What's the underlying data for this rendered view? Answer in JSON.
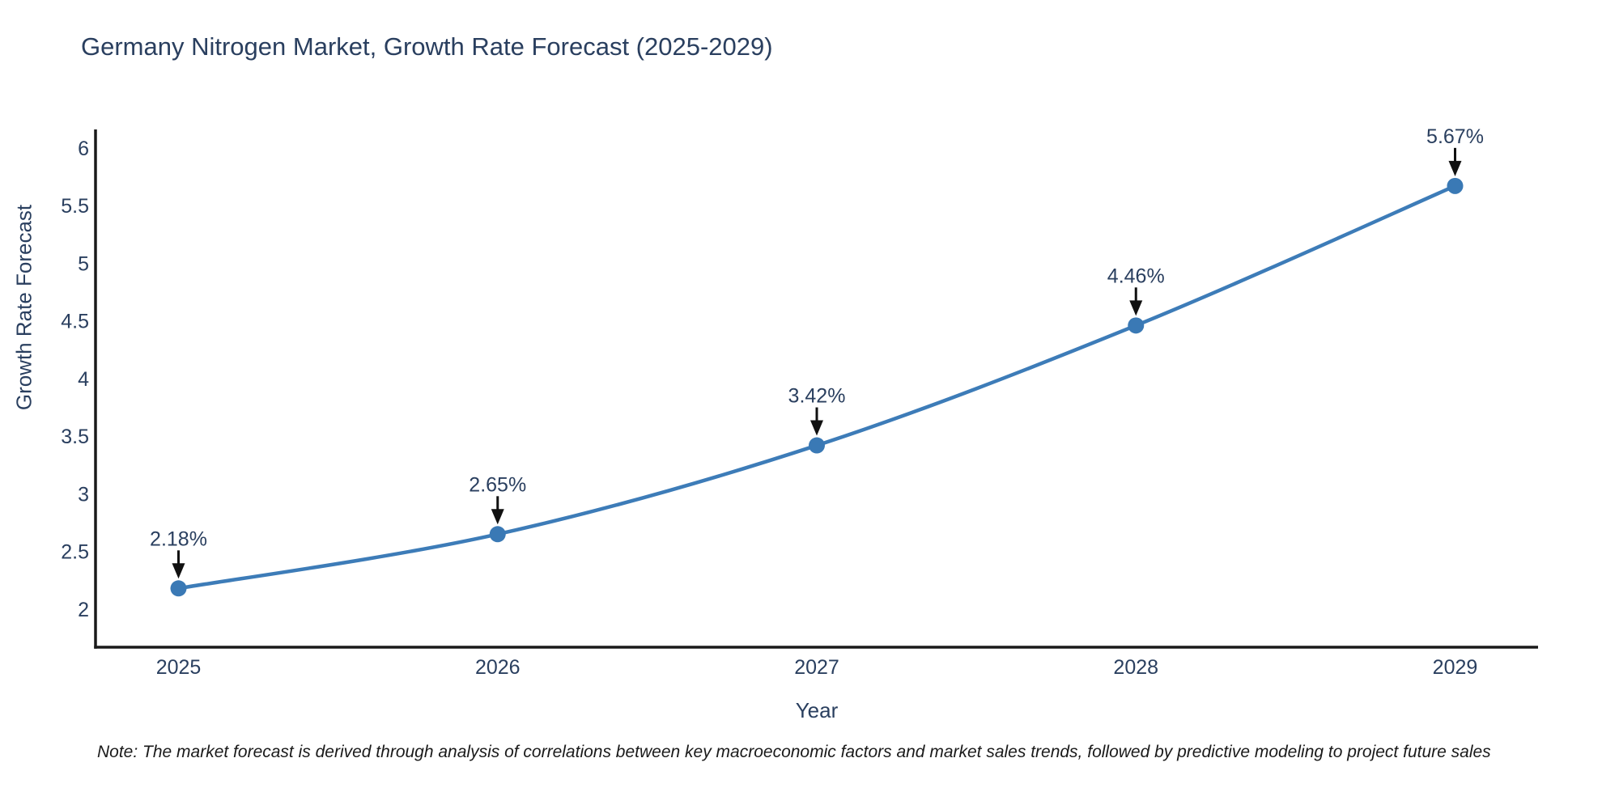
{
  "title": "Germany Nitrogen Market, Growth Rate Forecast (2025-2029)",
  "note": "Note: The market forecast is derived through analysis of correlations between key macroeconomic factors and market sales trends, followed by predictive modeling to project future sales",
  "colors": {
    "line": "#3d7cb8",
    "marker": "#3a79b5",
    "axis": "#1a1a1a",
    "tick_text": "#2a3f5f",
    "annotation_text": "#2a3f5f",
    "annotation_arrow": "#111111",
    "background": "#ffffff"
  },
  "chart_data": {
    "type": "line",
    "title": "Germany Nitrogen Market, Growth Rate Forecast (2025-2029)",
    "xlabel": "Year",
    "ylabel": "Growth Rate Forecast",
    "x": [
      2025,
      2026,
      2027,
      2028,
      2029
    ],
    "values": [
      2.18,
      2.65,
      3.42,
      4.46,
      5.67
    ],
    "point_labels": [
      "2.18%",
      "2.65%",
      "3.42%",
      "4.46%",
      "5.67%"
    ],
    "xtick_labels": [
      "2025",
      "2026",
      "2027",
      "2028",
      "2029"
    ],
    "yticks": [
      2,
      2.5,
      3,
      3.5,
      4,
      4.5,
      5,
      5.5,
      6
    ],
    "ytick_labels": [
      "2",
      "2.5",
      "3",
      "3.5",
      "4",
      "4.5",
      "5",
      "5.5",
      "6"
    ],
    "xlim": [
      2024.74,
      2029.26
    ],
    "ylim": [
      1.67,
      6.16
    ],
    "grid": false,
    "legend": "none",
    "line_shape": "spline",
    "annotations_arrow": true
  }
}
